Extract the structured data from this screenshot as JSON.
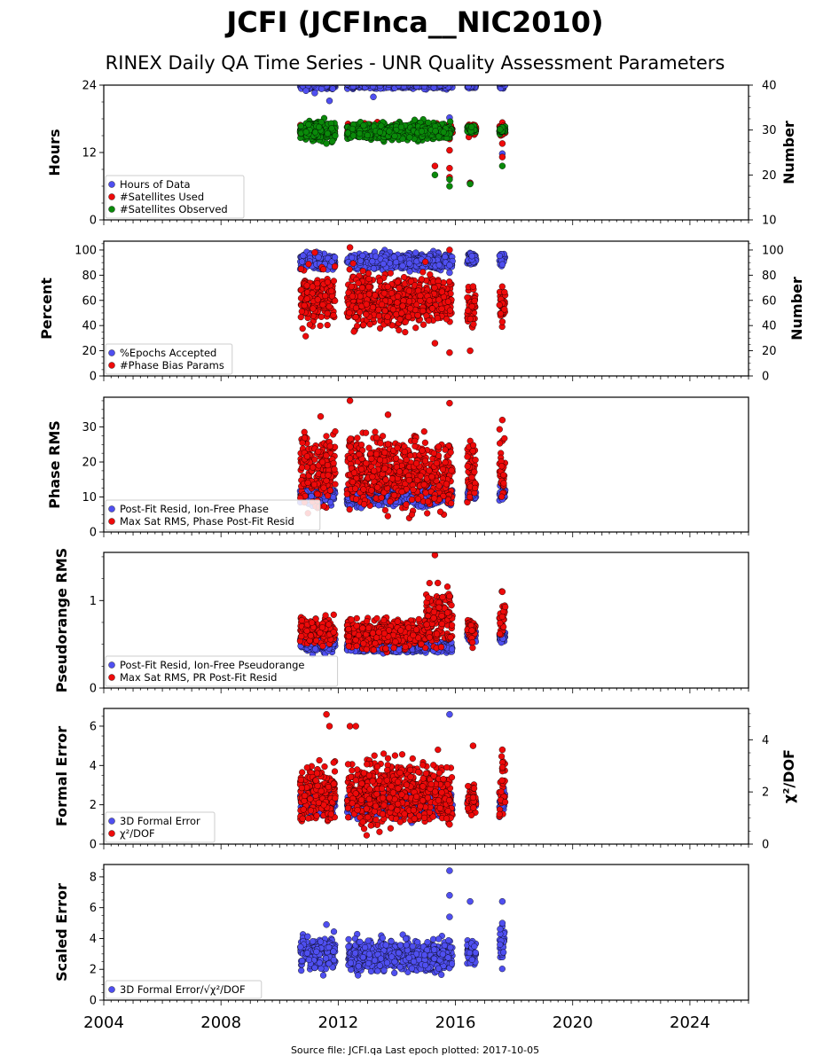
{
  "title": "JCFI (JCFInca__NIC2010)",
  "subtitle": "RINEX Daily QA Time Series - UNR Quality Assessment Parameters",
  "footer": "Source file: JCFI.qa Last epoch plotted: 2017-10-05",
  "colors": {
    "blue": "#4f4ff0",
    "red": "#ee0a0a",
    "green": "#0a8a0a",
    "edge": "#000000"
  },
  "chart_data": [
    {
      "type": "scatter",
      "name": "hours",
      "ylabel": "Hours",
      "ylabel_right": "Number",
      "xlim": [
        2004,
        2026
      ],
      "xticks": [
        "2004",
        "2008",
        "2012",
        "2016",
        "2020",
        "2024"
      ],
      "ylim": [
        0,
        24
      ],
      "yticks": [
        "0",
        "12",
        "24"
      ],
      "ylim_right": [
        10,
        40
      ],
      "yticks_right": [
        "10",
        "20",
        "30",
        "40"
      ],
      "legend_loc": "lower-left",
      "series": [
        {
          "name": "Hours of Data",
          "color": "blue",
          "axis": "left",
          "segments": [
            [
              2010.7,
              2011.9,
              24,
              0.3
            ],
            [
              2012.3,
              2015.9,
              24,
              0.3
            ],
            [
              2016.4,
              2016.7,
              24,
              0.3
            ],
            [
              2017.5,
              2017.7,
              24,
              0.3
            ]
          ],
          "points": [
            [
              2010.9,
              23.0
            ],
            [
              2011.2,
              22.6
            ],
            [
              2011.7,
              21.2
            ],
            [
              2013.2,
              21.9
            ],
            [
              2015.8,
              18.2
            ],
            [
              2016.5,
              6.6
            ],
            [
              2017.6,
              11.8
            ]
          ]
        },
        {
          "name": "#Satellites Used",
          "color": "red",
          "axis": "right",
          "segments": [
            [
              2010.7,
              2011.9,
              30,
              0.6
            ],
            [
              2012.3,
              2015.9,
              30,
              0.6
            ],
            [
              2016.4,
              2016.7,
              30,
              0.6
            ],
            [
              2017.5,
              2017.7,
              30,
              0.6
            ]
          ],
          "points": [
            [
              2015.3,
              22.0
            ],
            [
              2015.8,
              28.0
            ],
            [
              2015.8,
              25.5
            ],
            [
              2015.8,
              21.5
            ],
            [
              2015.8,
              19.5
            ],
            [
              2016.5,
              18.2
            ],
            [
              2017.6,
              27.0
            ],
            [
              2017.6,
              24.0
            ]
          ]
        },
        {
          "name": "#Satellites Observed",
          "color": "green",
          "axis": "right",
          "segments": [
            [
              2010.7,
              2011.9,
              29.8,
              1.0
            ],
            [
              2012.3,
              2015.9,
              29.8,
              0.9
            ],
            [
              2016.4,
              2016.7,
              30,
              0.4
            ],
            [
              2017.5,
              2017.7,
              30,
              0.4
            ]
          ],
          "points": [
            [
              2011.6,
              27.0
            ],
            [
              2011.8,
              27.5
            ],
            [
              2015.3,
              20.0
            ],
            [
              2015.8,
              19.0
            ],
            [
              2015.8,
              17.5
            ],
            [
              2016.5,
              18.0
            ],
            [
              2017.6,
              22.0
            ]
          ]
        }
      ]
    },
    {
      "type": "scatter",
      "name": "percent",
      "ylabel": "Percent",
      "ylabel_right": "Number",
      "xlim": [
        2004,
        2026
      ],
      "ylim": [
        0,
        107
      ],
      "yticks": [
        "0",
        "20",
        "40",
        "60",
        "80",
        "100"
      ],
      "yticks_right": [
        "0",
        "20",
        "40",
        "60",
        "80",
        "100"
      ],
      "legend_loc": "lower-left",
      "series": [
        {
          "name": "%Epochs Accepted",
          "color": "blue",
          "axis": "left",
          "segments": [
            [
              2010.7,
              2011.9,
              91,
              3
            ],
            [
              2012.3,
              2015.9,
              91,
              3
            ],
            [
              2016.4,
              2016.7,
              93,
              2
            ],
            [
              2017.5,
              2017.7,
              93,
              3
            ]
          ],
          "points": [
            [
              2015.8,
              88.0
            ],
            [
              2015.8,
              82.0
            ],
            [
              2017.6,
              88.5
            ]
          ]
        },
        {
          "name": "#Phase Bias Params",
          "color": "red",
          "axis": "left",
          "segments": [
            [
              2010.7,
              2011.9,
              62,
              11
            ],
            [
              2012.3,
              2015.9,
              60,
              10
            ],
            [
              2016.4,
              2016.7,
              55,
              8
            ],
            [
              2017.5,
              2017.7,
              55,
              7
            ]
          ],
          "points": [
            [
              2012.4,
              102.0
            ],
            [
              2011.2,
              98.0
            ],
            [
              2015.3,
              26.0
            ],
            [
              2015.8,
              18.5
            ],
            [
              2015.8,
              100.0
            ],
            [
              2016.5,
              20.0
            ],
            [
              2016.6,
              71.0
            ],
            [
              2017.6,
              43.0
            ]
          ]
        }
      ]
    },
    {
      "type": "scatter",
      "name": "phase-rms",
      "ylabel": "Phase RMS",
      "xlim": [
        2004,
        2026
      ],
      "ylim": [
        0,
        38.5
      ],
      "yticks": [
        "0",
        "10",
        "20",
        "30"
      ],
      "legend_loc": "lower-left",
      "series": [
        {
          "name": "Post-Fit Resid, Ion-Free Phase",
          "color": "blue",
          "axis": "left",
          "segments": [
            [
              2010.7,
              2011.9,
              10.5,
              1.2
            ],
            [
              2012.3,
              2015.9,
              10.0,
              1.2
            ],
            [
              2016.4,
              2016.7,
              11.5,
              1.2
            ],
            [
              2017.5,
              2017.7,
              11.0,
              1.2
            ]
          ],
          "points": [
            [
              2015.8,
              8.0
            ]
          ]
        },
        {
          "name": "Max Sat RMS, Phase Post-Fit Resid",
          "color": "red",
          "axis": "left",
          "segments": [
            [
              2010.7,
              2011.9,
              18,
              5
            ],
            [
              2012.3,
              2015.9,
              17,
              5
            ],
            [
              2016.4,
              2016.7,
              18,
              4
            ],
            [
              2017.5,
              2017.7,
              20,
              5
            ]
          ],
          "points": [
            [
              2012.4,
              37.5
            ],
            [
              2015.8,
              36.8
            ],
            [
              2011.4,
              33.0
            ],
            [
              2013.7,
              33.5
            ],
            [
              2017.6,
              32.0
            ]
          ]
        }
      ]
    },
    {
      "type": "scatter",
      "name": "pseudorange-rms",
      "ylabel": "Pseudorange RMS",
      "xlim": [
        2004,
        2026
      ],
      "ylim": [
        0,
        1.55
      ],
      "yticks": [
        "0",
        "1"
      ],
      "legend_loc": "lower-left",
      "series": [
        {
          "name": "Post-Fit Resid, Ion-Free Pseudorange",
          "color": "blue",
          "axis": "left",
          "segments": [
            [
              2010.7,
              2011.9,
              0.5,
              0.04
            ],
            [
              2012.3,
              2015.9,
              0.47,
              0.03
            ],
            [
              2016.4,
              2016.7,
              0.6,
              0.03
            ],
            [
              2017.5,
              2017.7,
              0.58,
              0.03
            ]
          ],
          "points": [
            [
              2015.6,
              0.75
            ]
          ]
        },
        {
          "name": "Max Sat RMS, PR Post-Fit Resid",
          "color": "red",
          "axis": "left",
          "segments": [
            [
              2010.7,
              2011.9,
              0.66,
              0.08
            ],
            [
              2012.3,
              2015.0,
              0.62,
              0.08
            ],
            [
              2015.0,
              2015.9,
              0.8,
              0.15
            ],
            [
              2016.4,
              2016.7,
              0.68,
              0.08
            ],
            [
              2017.5,
              2017.7,
              0.78,
              0.12
            ]
          ],
          "points": [
            [
              2015.3,
              1.52
            ],
            [
              2015.4,
              1.2
            ],
            [
              2015.8,
              1.05
            ],
            [
              2017.6,
              1.1
            ]
          ]
        }
      ]
    },
    {
      "type": "scatter",
      "name": "formal-error",
      "ylabel": "Formal Error",
      "ylabel_right": "χ²/DOF",
      "xlim": [
        2004,
        2026
      ],
      "ylim": [
        0,
        6.9
      ],
      "yticks": [
        "0",
        "2",
        "4",
        "6"
      ],
      "ylim_right": [
        0,
        5.2
      ],
      "yticks_right": [
        "0",
        "2",
        "4"
      ],
      "legend_loc": "lower-left",
      "series": [
        {
          "name": "3D Formal Error",
          "color": "blue",
          "axis": "left",
          "segments": [
            [
              2010.7,
              2011.9,
              2.1,
              0.3
            ],
            [
              2012.3,
              2015.9,
              2.0,
              0.3
            ],
            [
              2016.4,
              2016.7,
              2.1,
              0.2
            ],
            [
              2017.5,
              2017.7,
              2.2,
              0.3
            ]
          ],
          "points": [
            [
              2015.8,
              6.6
            ]
          ]
        },
        {
          "name": "χ²/DOF",
          "color": "red",
          "axis": "left",
          "segments": [
            [
              2010.7,
              2011.9,
              2.6,
              0.7
            ],
            [
              2012.3,
              2015.9,
              2.6,
              0.8
            ],
            [
              2016.4,
              2016.7,
              2.3,
              0.4
            ],
            [
              2017.5,
              2017.7,
              2.8,
              0.6
            ]
          ],
          "points": [
            [
              2011.6,
              6.6
            ],
            [
              2011.7,
              6.0
            ],
            [
              2012.4,
              6.0
            ],
            [
              2012.6,
              6.0
            ],
            [
              2015.8,
              1.0
            ],
            [
              2016.6,
              5.0
            ],
            [
              2017.6,
              4.8
            ]
          ]
        }
      ]
    },
    {
      "type": "scatter",
      "name": "scaled-error",
      "ylabel": "Scaled Error",
      "xlim": [
        2004,
        2026
      ],
      "ylim": [
        0,
        8.8
      ],
      "yticks": [
        "0",
        "2",
        "4",
        "6",
        "8"
      ],
      "legend_loc": "lower-left",
      "series": [
        {
          "name": "3D Formal Error/√χ²/DOF",
          "color": "blue",
          "axis": "left",
          "segments": [
            [
              2010.7,
              2011.9,
              3.0,
              0.5
            ],
            [
              2012.3,
              2015.9,
              2.9,
              0.5
            ],
            [
              2016.4,
              2016.7,
              3.2,
              0.5
            ],
            [
              2017.5,
              2017.7,
              3.7,
              0.6
            ]
          ],
          "points": [
            [
              2015.8,
              8.4
            ],
            [
              2015.8,
              6.8
            ],
            [
              2015.8,
              5.4
            ],
            [
              2016.5,
              6.4
            ],
            [
              2017.6,
              6.4
            ],
            [
              2011.6,
              4.9
            ],
            [
              2017.6,
              5.0
            ]
          ]
        }
      ]
    }
  ]
}
